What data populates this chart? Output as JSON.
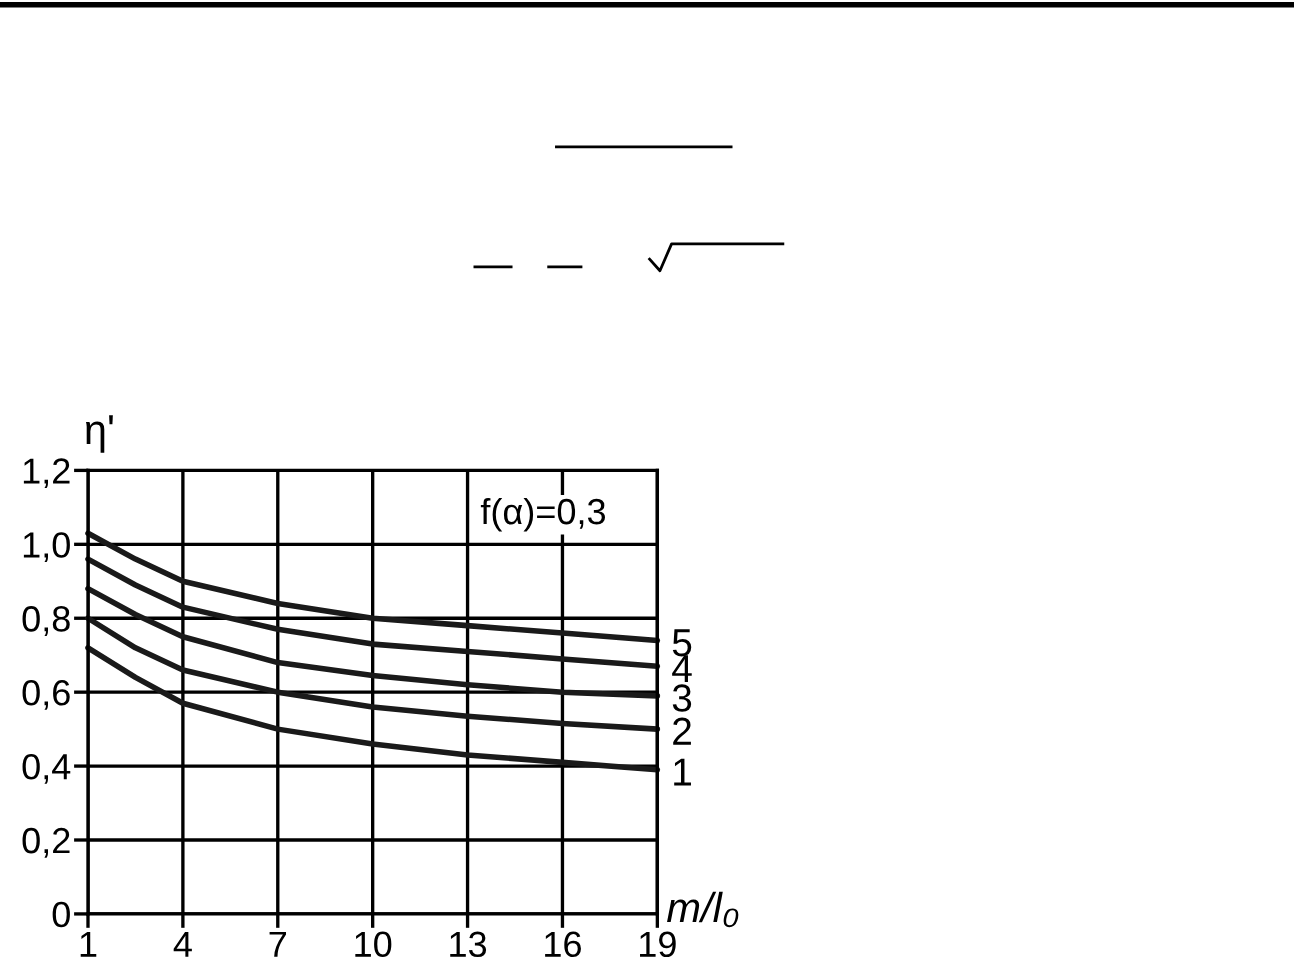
{
  "chart_data": {
    "type": "line",
    "xlabel": "m/l₀",
    "ylabel": "η'",
    "annotations": [
      "f(α)=0,3"
    ],
    "x": [
      1,
      2.5,
      4,
      7,
      10,
      13,
      16,
      19
    ],
    "series": [
      {
        "name": "1",
        "color": "#1a1a1a",
        "values": [
          0.72,
          0.64,
          0.57,
          0.5,
          0.46,
          0.43,
          0.41,
          0.39
        ]
      },
      {
        "name": "2",
        "color": "#1a1a1a",
        "values": [
          0.8,
          0.72,
          0.66,
          0.6,
          0.56,
          0.535,
          0.515,
          0.5
        ]
      },
      {
        "name": "3",
        "color": "#1a1a1a",
        "values": [
          0.88,
          0.81,
          0.75,
          0.68,
          0.645,
          0.62,
          0.6,
          0.59
        ]
      },
      {
        "name": "4",
        "color": "#1a1a1a",
        "values": [
          0.96,
          0.89,
          0.83,
          0.77,
          0.73,
          0.71,
          0.69,
          0.67
        ]
      },
      {
        "name": "5",
        "color": "#1a1a1a",
        "values": [
          1.03,
          0.96,
          0.9,
          0.84,
          0.8,
          0.78,
          0.76,
          0.74
        ]
      }
    ],
    "xlim": [
      1,
      19
    ],
    "xticks": [
      1,
      4,
      7,
      10,
      13,
      16,
      19
    ],
    "ylim": [
      0,
      1.2
    ],
    "yticks": [
      0,
      {
        "value": 0.2,
        "label": "0,2"
      },
      {
        "value": 0.4,
        "label": "0,4"
      },
      {
        "value": 0.6,
        "label": "0,6"
      },
      {
        "value": 0.8,
        "label": "0,8"
      },
      {
        "value": 1.0,
        "label": "1,0"
      },
      {
        "value": 1.2,
        "label": "1,2"
      }
    ],
    "grid": true,
    "legend": false,
    "marker": "none",
    "line_style": "solid"
  }
}
